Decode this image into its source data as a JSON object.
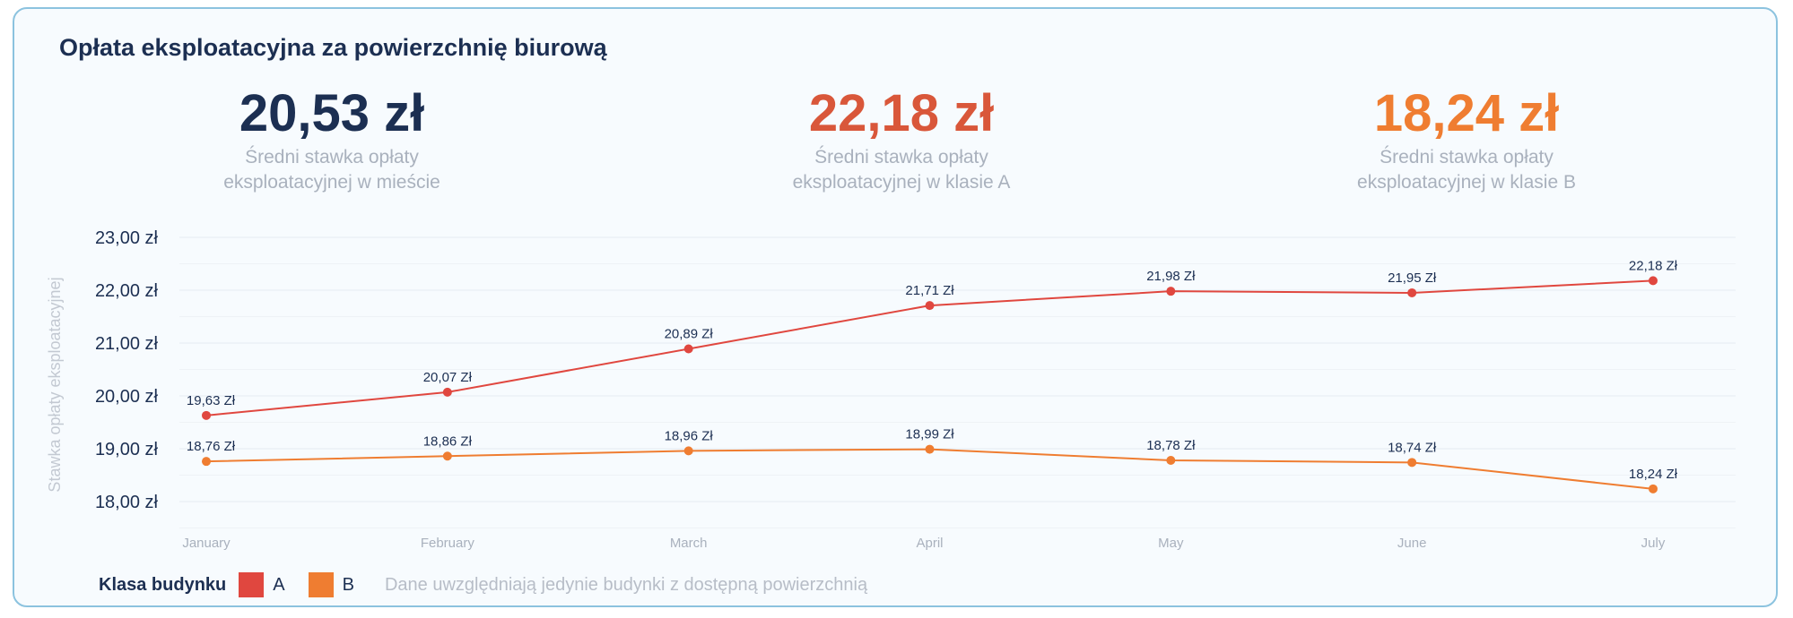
{
  "title": "Opłata eksploatacyjna za powierzchnię biurową",
  "kpis": [
    {
      "value": "20,53 zł",
      "label": "Średni stawka opłaty\neksploatacyjnej w mieście",
      "color": "#1c2f52"
    },
    {
      "value": "22,18 zł",
      "label": "Średni stawka opłaty\neksploatacyjnej w klasie A",
      "color": "#d9573a"
    },
    {
      "value": "18,24 zł",
      "label": "Średni stawka opłaty\neksploatacyjnej w klasie B",
      "color": "#ef7d31"
    }
  ],
  "legend": {
    "title": "Klasa budynku",
    "items": [
      {
        "label": "A",
        "color": "#e0473f"
      },
      {
        "label": "B",
        "color": "#ef7d31"
      }
    ],
    "note": "Dane uwzględniają jedynie budynki z dostępną powierzchnią"
  },
  "chart_data": {
    "type": "line",
    "title": "",
    "ylabel": "Stawka opłaty eksploatacyjnej",
    "xlabel": "",
    "categories": [
      "January",
      "February",
      "March",
      "April",
      "May",
      "June",
      "July"
    ],
    "ylim": [
      17.5,
      23.0
    ],
    "yticks": [
      {
        "value": 23,
        "label": "23,00 zł"
      },
      {
        "value": 22,
        "label": "22,00 zł"
      },
      {
        "value": 21,
        "label": "21,00 zł"
      },
      {
        "value": 20,
        "label": "20,00 zł"
      },
      {
        "value": 19,
        "label": "19,00 zł"
      },
      {
        "value": 18,
        "label": "18,00  zł"
      }
    ],
    "grid": true,
    "legend_position": "bottom-left",
    "series": [
      {
        "name": "A",
        "color": "#e0473f",
        "values": [
          19.63,
          20.07,
          20.89,
          21.71,
          21.98,
          21.95,
          22.18
        ],
        "labels": [
          "19,63 Zł",
          "20,07 Zł",
          "20,89 Zł",
          "21,71 Zł",
          "21,98 Zł",
          "21,95 Zł",
          "22,18 Zł"
        ]
      },
      {
        "name": "B",
        "color": "#ef7d31",
        "values": [
          18.76,
          18.86,
          18.96,
          18.99,
          18.78,
          18.74,
          18.24
        ],
        "labels": [
          "18,76 Zł",
          "18,86 Zł",
          "18,96 Zł",
          "18,99 Zł",
          "18,78 Zł",
          "18,74 Zł",
          "18,24 Zł"
        ]
      }
    ]
  }
}
